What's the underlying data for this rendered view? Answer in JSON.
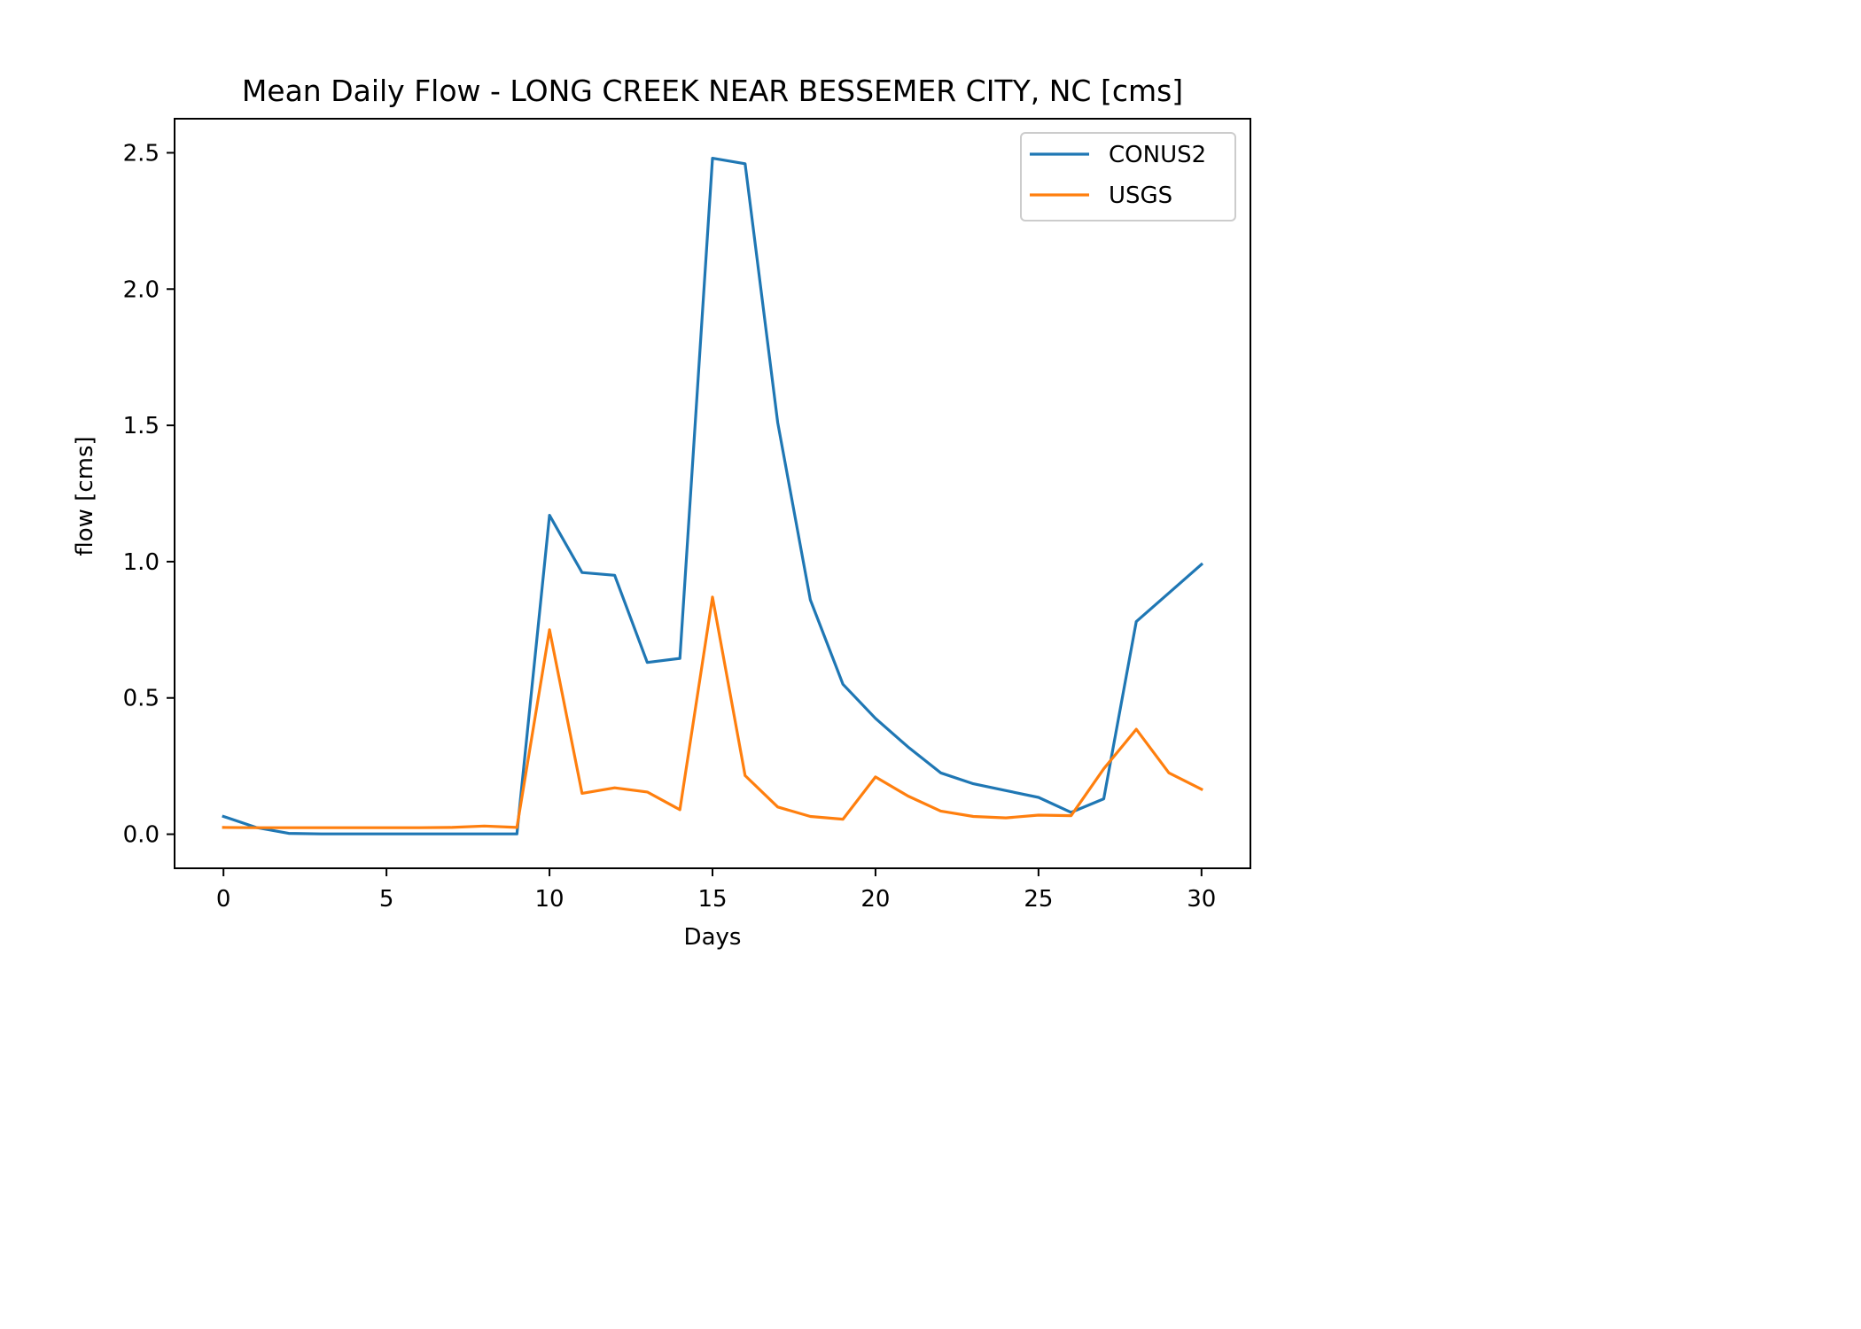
{
  "chart_data": {
    "type": "line",
    "title": "Mean Daily Flow - LONG CREEK NEAR BESSEMER CITY, NC [cms]",
    "xlabel": "Days",
    "ylabel": "flow [cms]",
    "xlim": [
      -1.5,
      31.5
    ],
    "ylim": [
      -0.125,
      2.625
    ],
    "xticks": [
      0,
      5,
      10,
      15,
      20,
      25,
      30
    ],
    "xtick_labels": [
      "0",
      "5",
      "10",
      "15",
      "20",
      "25",
      "30"
    ],
    "yticks": [
      0.0,
      0.5,
      1.0,
      1.5,
      2.0,
      2.5
    ],
    "ytick_labels": [
      "0.0",
      "0.5",
      "1.0",
      "1.5",
      "2.0",
      "2.5"
    ],
    "grid": false,
    "legend_position": "upper right",
    "x": [
      0,
      1,
      2,
      3,
      4,
      5,
      6,
      7,
      8,
      9,
      10,
      11,
      12,
      13,
      14,
      15,
      16,
      17,
      18,
      19,
      20,
      21,
      22,
      23,
      24,
      25,
      26,
      27,
      28,
      29,
      30
    ],
    "series": [
      {
        "name": "CONUS2",
        "color": "#1f77b4",
        "values": [
          0.065,
          0.025,
          0.003,
          0.001,
          0.001,
          0.001,
          0.001,
          0.001,
          0.001,
          0.001,
          1.17,
          0.96,
          0.95,
          0.63,
          0.645,
          2.48,
          2.46,
          1.51,
          0.86,
          0.55,
          0.425,
          0.32,
          0.225,
          0.185,
          0.16,
          0.135,
          0.08,
          0.13,
          0.78,
          0.885,
          0.99
        ]
      },
      {
        "name": "USGS",
        "color": "#ff7f0e",
        "values": [
          0.025,
          0.024,
          0.024,
          0.024,
          0.024,
          0.024,
          0.024,
          0.025,
          0.03,
          0.025,
          0.75,
          0.15,
          0.17,
          0.155,
          0.09,
          0.87,
          0.215,
          0.1,
          0.065,
          0.055,
          0.21,
          0.14,
          0.085,
          0.065,
          0.06,
          0.07,
          0.068,
          0.24,
          0.385,
          0.225,
          0.165
        ]
      }
    ]
  }
}
